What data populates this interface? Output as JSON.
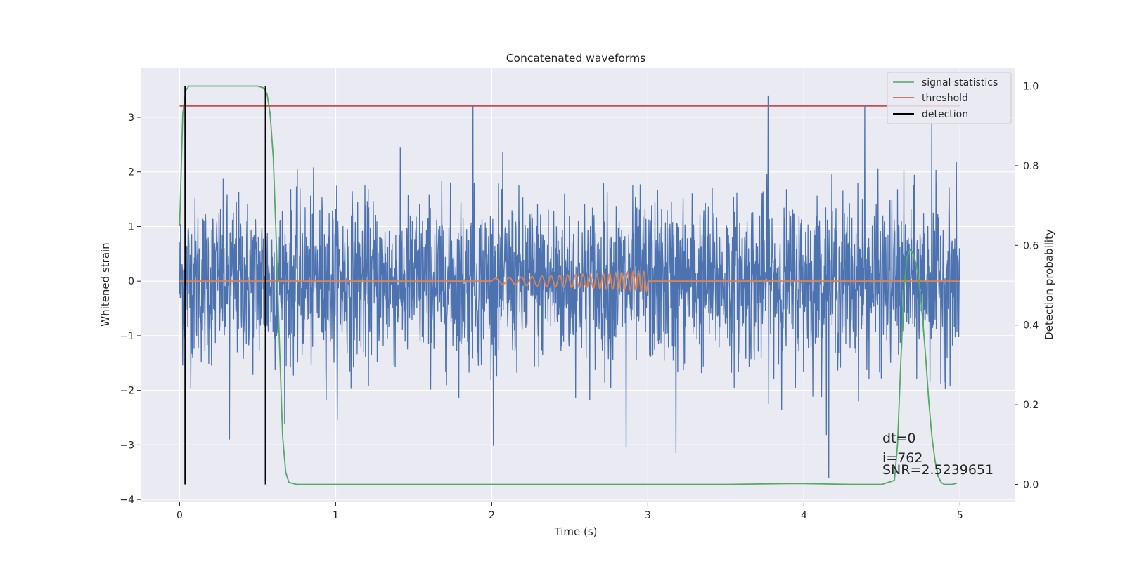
{
  "chart_data": {
    "type": "line",
    "title": "Concatenated waveforms",
    "xlabel": "Time (s)",
    "ylabel": "Whitened strain",
    "ylabel_right": "Detection probability",
    "xlim": [
      -0.25,
      5.35
    ],
    "ylim": [
      -4.05,
      3.9
    ],
    "ylim_right": [
      -0.045,
      1.045
    ],
    "x_ticks": [
      0,
      1,
      2,
      3,
      4,
      5
    ],
    "y_ticks": [
      -4,
      -3,
      -2,
      -1,
      0,
      1,
      2,
      3
    ],
    "y_ticks_right": [
      0.0,
      0.2,
      0.4,
      0.6,
      0.8,
      1.0
    ],
    "x_tick_labels": [
      "0",
      "1",
      "2",
      "3",
      "4",
      "5"
    ],
    "y_tick_labels": [
      "−4",
      "−3",
      "−2",
      "−1",
      "0",
      "1",
      "2",
      "3"
    ],
    "y_tick_labels_right": [
      "0.0",
      "0.2",
      "0.4",
      "0.6",
      "0.8",
      "1.0"
    ],
    "grid": true,
    "legend_position": "top-right",
    "colors": {
      "background": "#eaeaf2",
      "grid": "#ffffff",
      "strain": "#4c72b0",
      "template": "#dd8452",
      "signal_statistics": "#55a868",
      "threshold": "#c44e52",
      "detection": "#000000"
    },
    "series": [
      {
        "name": "Whitened strain (noise)",
        "axis": "left",
        "x_range": [
          0,
          5
        ],
        "noise_std": 0.75,
        "spikes": [
          {
            "x": 1.88,
            "y": 3.2
          },
          {
            "x": 3.77,
            "y": 3.55
          },
          {
            "x": 4.16,
            "y": -3.65
          },
          {
            "x": 4.39,
            "y": 3.22
          },
          {
            "x": 4.82,
            "y": 3.15
          },
          {
            "x": 3.18,
            "y": -3.15
          },
          {
            "x": 2.86,
            "y": -3.05
          },
          {
            "x": 0.32,
            "y": -2.9
          }
        ]
      },
      {
        "name": "Injected waveform",
        "axis": "left",
        "x_range": [
          0,
          5
        ],
        "chirp_x_range": [
          2.0,
          3.0
        ],
        "chirp_start_amplitude": 0.05,
        "chirp_end_amplitude": 0.18
      },
      {
        "name": "signal statistics",
        "axis": "right",
        "x": [
          0.0,
          0.02,
          0.04,
          0.06,
          0.08,
          0.1,
          0.2,
          0.3,
          0.4,
          0.5,
          0.54,
          0.56,
          0.58,
          0.6,
          0.62,
          0.64,
          0.66,
          0.68,
          0.7,
          0.75,
          1.0,
          2.0,
          3.0,
          3.5,
          3.9,
          4.0,
          4.3,
          4.5,
          4.58,
          4.6,
          4.62,
          4.64,
          4.66,
          4.68,
          4.7,
          4.72,
          4.74,
          4.76,
          4.78,
          4.8,
          4.82,
          4.84,
          4.86,
          4.88,
          4.9,
          4.95,
          4.98
        ],
        "y": [
          0.65,
          0.93,
          0.99,
          1.0,
          1.0,
          1.0,
          1.0,
          1.0,
          1.0,
          1.0,
          0.995,
          0.98,
          0.93,
          0.82,
          0.6,
          0.35,
          0.12,
          0.03,
          0.005,
          0.0,
          0.0,
          0.0,
          0.0,
          0.0,
          0.002,
          0.002,
          0.0,
          0.0,
          0.01,
          0.1,
          0.3,
          0.48,
          0.57,
          0.59,
          0.58,
          0.55,
          0.5,
          0.42,
          0.32,
          0.21,
          0.12,
          0.06,
          0.02,
          0.005,
          0.0,
          0.0,
          0.003
        ]
      },
      {
        "name": "threshold",
        "axis": "right",
        "x": [
          0,
          5
        ],
        "y": [
          0.95,
          0.95
        ]
      },
      {
        "name": "detection",
        "axis": "right",
        "x_positions": [
          0.035,
          0.55
        ],
        "y_range": [
          0.0,
          1.0
        ]
      }
    ],
    "legend": [
      "signal statistics",
      "threshold",
      "detection"
    ],
    "annotations": [
      "dt=0",
      "i=762",
      "SNR=2.5239651"
    ]
  }
}
